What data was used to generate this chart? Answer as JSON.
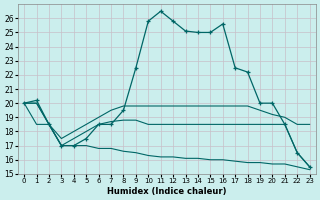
{
  "xlabel": "Humidex (Indice chaleur)",
  "background_color": "#cbeeed",
  "grid_color": "#dddddd",
  "line_color": "#006666",
  "xlim": [
    -0.5,
    23.5
  ],
  "ylim": [
    15,
    27
  ],
  "yticks": [
    15,
    16,
    17,
    18,
    19,
    20,
    21,
    22,
    23,
    24,
    25,
    26
  ],
  "xticks": [
    0,
    1,
    2,
    3,
    4,
    5,
    6,
    7,
    8,
    9,
    10,
    11,
    12,
    13,
    14,
    15,
    16,
    17,
    18,
    19,
    20,
    21,
    22,
    23
  ],
  "series": [
    {
      "x": [
        0,
        1,
        2,
        3,
        4,
        5,
        6,
        7,
        8,
        9,
        10,
        11,
        12,
        13,
        14,
        15,
        16,
        17,
        18,
        19,
        20,
        21,
        22,
        23
      ],
      "y": [
        20,
        20.2,
        18.5,
        17.0,
        17.0,
        17.5,
        18.5,
        18.5,
        19.5,
        22.5,
        25.8,
        26.5,
        25.8,
        25.1,
        25.0,
        25.0,
        25.6,
        22.5,
        22.2,
        20.0,
        20.0,
        18.5,
        16.5,
        15.5
      ],
      "marker": "+"
    },
    {
      "x": [
        0,
        1,
        2,
        3,
        4,
        5,
        6,
        7,
        8,
        9,
        10,
        11,
        12,
        13,
        14,
        15,
        16,
        17,
        18,
        19,
        20,
        21,
        22,
        23
      ],
      "y": [
        20.0,
        20.0,
        18.5,
        17.5,
        18.0,
        18.5,
        19.0,
        19.5,
        19.8,
        19.8,
        19.8,
        19.8,
        19.8,
        19.8,
        19.8,
        19.8,
        19.8,
        19.8,
        19.8,
        19.5,
        19.2,
        19.0,
        18.5,
        18.5
      ],
      "marker": null
    },
    {
      "x": [
        0,
        1,
        2,
        3,
        4,
        5,
        6,
        7,
        8,
        9,
        10,
        11,
        12,
        13,
        14,
        15,
        16,
        17,
        18,
        19,
        20,
        21,
        22,
        23
      ],
      "y": [
        20.0,
        20.0,
        18.5,
        17.0,
        17.5,
        18.0,
        18.5,
        18.7,
        18.8,
        18.8,
        18.5,
        18.5,
        18.5,
        18.5,
        18.5,
        18.5,
        18.5,
        18.5,
        18.5,
        18.5,
        18.5,
        18.5,
        16.5,
        15.5
      ],
      "marker": null
    },
    {
      "x": [
        0,
        1,
        2,
        3,
        4,
        5,
        6,
        7,
        8,
        9,
        10,
        11,
        12,
        13,
        14,
        15,
        16,
        17,
        18,
        19,
        20,
        21,
        22,
        23
      ],
      "y": [
        20.0,
        18.5,
        18.5,
        17.0,
        17.0,
        17.0,
        16.8,
        16.8,
        16.6,
        16.5,
        16.3,
        16.2,
        16.2,
        16.1,
        16.1,
        16.0,
        16.0,
        15.9,
        15.8,
        15.8,
        15.7,
        15.7,
        15.5,
        15.3
      ],
      "marker": null
    }
  ]
}
